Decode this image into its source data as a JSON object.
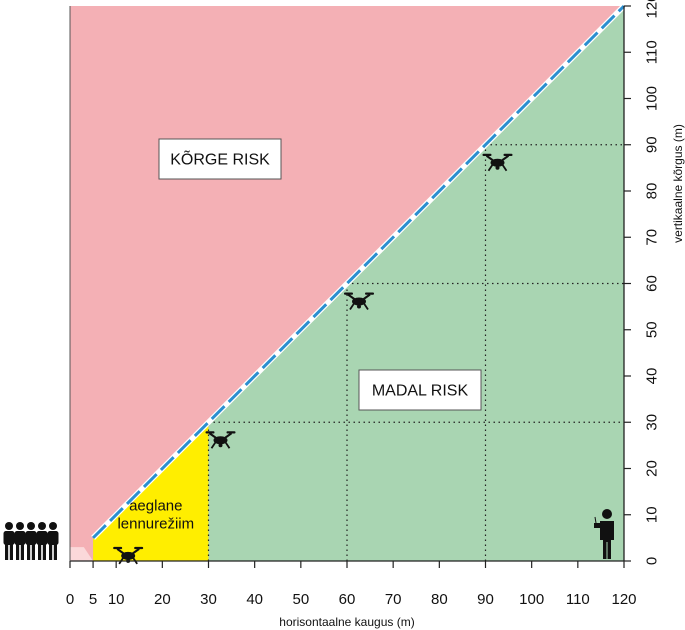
{
  "chart_data": {
    "type": "area",
    "xlabel": "horisontaalne kaugus (m)",
    "ylabel": "vertikaalne kõrgus (m)",
    "xlim": [
      0,
      120
    ],
    "ylim": [
      0,
      120
    ],
    "x_ticks": [
      0,
      5,
      10,
      20,
      30,
      40,
      50,
      60,
      70,
      80,
      90,
      100,
      110,
      120
    ],
    "y_ticks": [
      0,
      10,
      20,
      30,
      40,
      50,
      60,
      70,
      80,
      90,
      100,
      110,
      120
    ],
    "boundary_line": {
      "points": [
        [
          5,
          5
        ],
        [
          120,
          120
        ]
      ],
      "style": "dashed",
      "color": "#2b8fd0"
    },
    "zones": [
      {
        "name": "high",
        "label": "KÕRGE RISK",
        "color": "#f4b0b5"
      },
      {
        "name": "low",
        "label": "MADAL RISK",
        "color": "#a9d5b2"
      },
      {
        "name": "slow",
        "label_lines": [
          "aeglane",
          "lennurežiim"
        ],
        "x_range": [
          5,
          30
        ],
        "color": "#ffee00"
      }
    ],
    "drone_positions": [
      [
        10,
        5
      ],
      [
        30,
        30
      ],
      [
        60,
        60
      ],
      [
        90,
        90
      ]
    ],
    "reference_lines": [
      {
        "x": 30,
        "y": 30
      },
      {
        "x": 60,
        "y": 60
      },
      {
        "x": 90,
        "y": 90
      }
    ],
    "icons": [
      "people-group-icon",
      "drone-pilot-icon",
      "drone-icon"
    ]
  }
}
